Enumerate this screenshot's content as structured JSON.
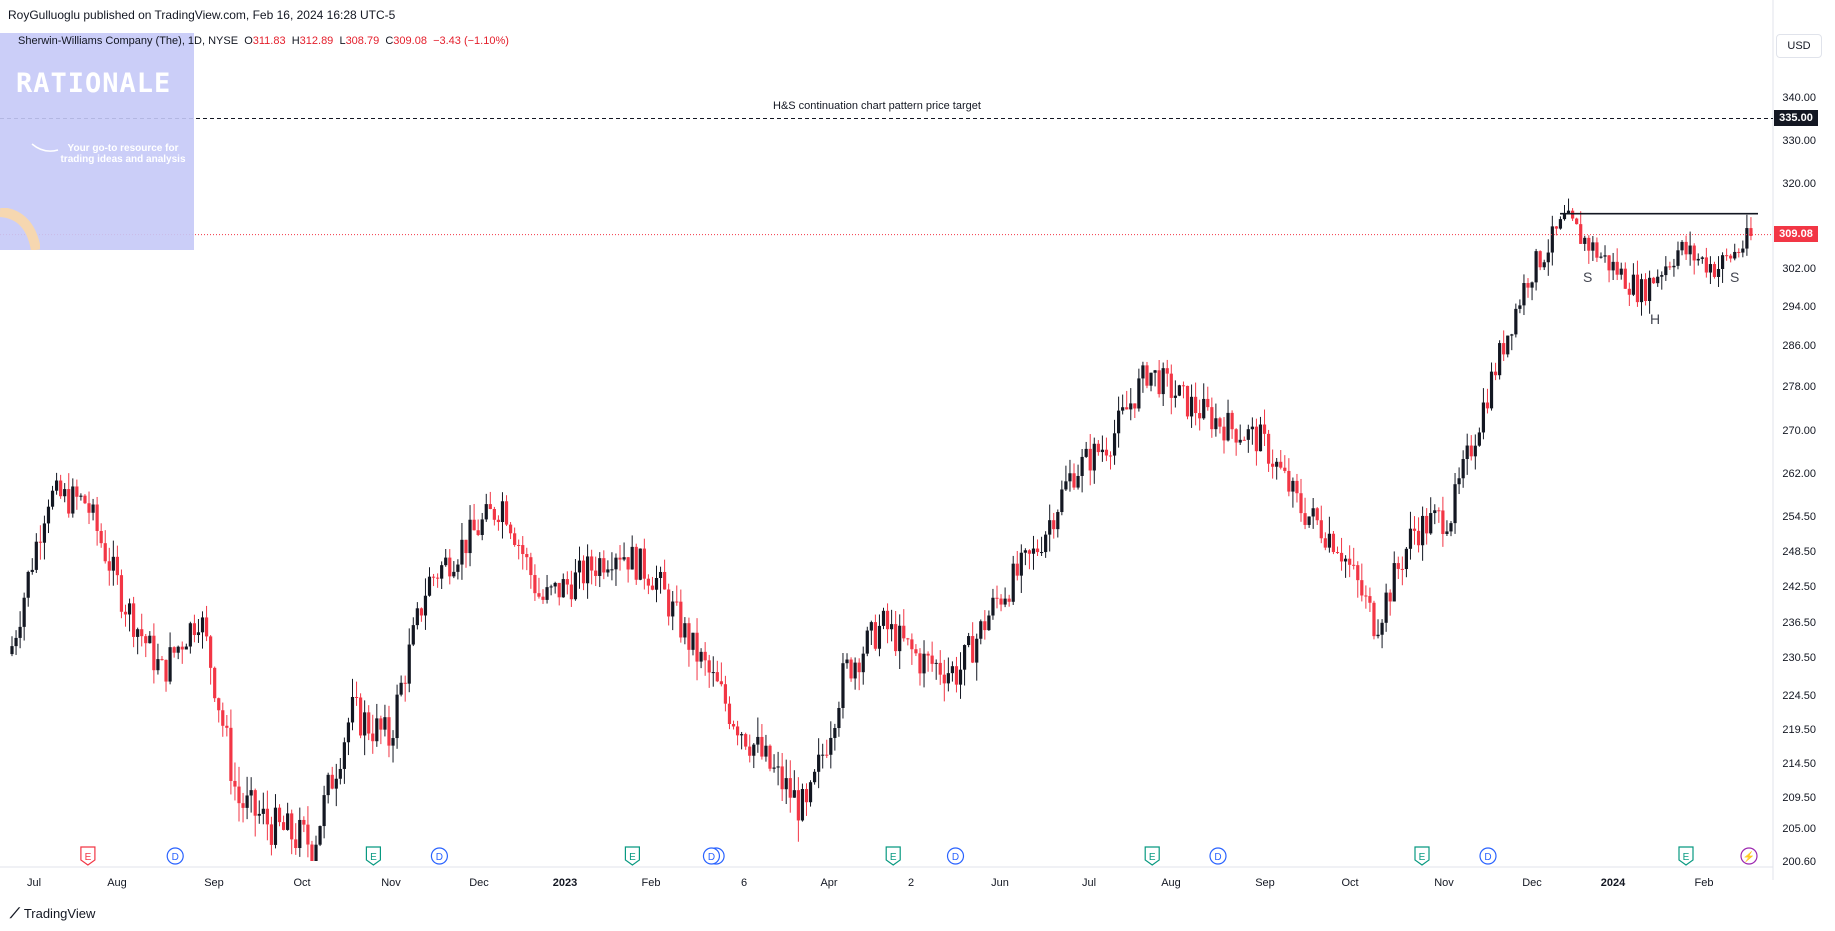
{
  "header": {
    "published": "RoyGulluoglu published on TradingView.com, Feb 16, 2024 16:28 UTC-5",
    "symbol": "Sherwin-Williams Company (The), 1D, NYSE",
    "ohlc": {
      "open_label": "O",
      "open": "311.83",
      "high_label": "H",
      "high": "312.89",
      "low_label": "L",
      "low": "308.79",
      "close_label": "C",
      "close": "309.08",
      "change": "−3.43 (−1.10%)"
    },
    "currency": "USD"
  },
  "logo": {
    "title": "RATIONALE",
    "tagline": "Your go-to resource for trading ideas and analysis"
  },
  "annotations": {
    "price_target_label": "H&S continuation chart pattern price target",
    "price_target_value": "335.00",
    "last_price_value": "309.08",
    "left_shoulder": "S",
    "head": "H",
    "right_shoulder": "S"
  },
  "footer": {
    "brand": "TradingView"
  },
  "colors": {
    "up": "#131722",
    "down": "#f23645",
    "last_price": "#f23645",
    "target": "#131722"
  },
  "chart_data": {
    "type": "candlestick",
    "y_ticks": [
      "340.00",
      "330.00",
      "320.00",
      "302.00",
      "294.00",
      "286.00",
      "278.00",
      "270.00",
      "262.00",
      "254.50",
      "248.50",
      "242.50",
      "236.50",
      "230.50",
      "224.50",
      "219.50",
      "214.50",
      "209.50",
      "205.00",
      "200.60"
    ],
    "x_ticks": [
      "Jul",
      "Aug",
      "Sep",
      "Oct",
      "Nov",
      "Dec",
      "2023",
      "Feb",
      "6",
      "Apr",
      "2",
      "Jun",
      "Jul",
      "Aug",
      "Sep",
      "Oct",
      "Nov",
      "Dec",
      "2024",
      "Feb"
    ],
    "x_ticks_bold": [
      "2023",
      "2024"
    ],
    "event_markers": [
      {
        "type": "E",
        "color": "#f23645",
        "tick": "Aug",
        "pos": -0.3
      },
      {
        "type": "D",
        "color": "#2962ff",
        "tick": "Aug",
        "pos": 0.6
      },
      {
        "type": "E",
        "color": "#089981",
        "tick": "Nov",
        "pos": -0.2
      },
      {
        "type": "D",
        "color": "#2962ff",
        "tick": "Nov",
        "pos": 0.55
      },
      {
        "type": "E",
        "color": "#089981",
        "tick": "Feb",
        "pos": -0.2
      },
      {
        "type": "D",
        "color": "#2962ff",
        "tick": "Feb",
        "pos": 0.7
      },
      {
        "type": "E",
        "color": "#089981",
        "tick": "2",
        "pos": -0.2
      },
      {
        "type": "D",
        "color": "#2962ff",
        "tick": "2",
        "pos": 0.5
      },
      {
        "type": "E",
        "color": "#089981",
        "tick": "Aug",
        "pos": -0.2
      },
      {
        "type": "D",
        "color": "#2962ff",
        "tick": "Aug",
        "pos": 0.5
      },
      {
        "type": "E",
        "color": "#089981",
        "tick": "Nov",
        "pos": -0.25
      },
      {
        "type": "D",
        "color": "#2962ff",
        "tick": "Nov",
        "pos": 0.5
      },
      {
        "type": "E",
        "color": "#089981",
        "tick": "Feb",
        "pos": -0.2
      },
      {
        "type": "S",
        "color": "#9c27b0",
        "tick": "Feb",
        "pos": 0.5
      },
      {
        "type": "D",
        "color": "#2962ff",
        "tick": "Feb",
        "pos": 0.65
      }
    ],
    "price_path": [
      [
        "Jul",
        231
      ],
      [
        "Jul",
        258
      ],
      [
        "Aug",
        257
      ],
      [
        "Aug",
        240
      ],
      [
        "Sep",
        228
      ],
      [
        "Sep",
        238
      ],
      [
        "Oct",
        209
      ],
      [
        "Oct",
        205
      ],
      [
        "Oct",
        203
      ],
      [
        "Nov",
        222
      ],
      [
        "Nov",
        218
      ],
      [
        "Dec",
        243
      ],
      [
        "Dec",
        250
      ],
      [
        "Dec",
        257
      ],
      [
        "2023",
        240
      ],
      [
        "2023",
        244
      ],
      [
        "2023",
        249
      ],
      [
        "Feb",
        244
      ],
      [
        "Feb",
        232
      ],
      [
        "6",
        222
      ],
      [
        "6",
        214
      ],
      [
        "Apr",
        207
      ],
      [
        "Apr",
        228
      ],
      [
        "2",
        236
      ],
      [
        "2",
        230
      ],
      [
        "2",
        228
      ],
      [
        "Jun",
        240
      ],
      [
        "Jun",
        248
      ],
      [
        "Jul",
        262
      ],
      [
        "Jul",
        268
      ],
      [
        "Aug",
        281
      ],
      [
        "Aug",
        275
      ],
      [
        "Sep",
        271
      ],
      [
        "Sep",
        268
      ],
      [
        "Oct",
        256
      ],
      [
        "Oct",
        250
      ],
      [
        "Nov",
        236
      ],
      [
        "Nov",
        252
      ],
      [
        "Nov",
        255
      ],
      [
        "Dec",
        278
      ],
      [
        "Dec",
        300
      ],
      [
        "Dec",
        312
      ],
      [
        "2024",
        304
      ],
      [
        "2024",
        297
      ],
      [
        "2024",
        306
      ],
      [
        "Feb",
        302
      ],
      [
        "Feb",
        309
      ]
    ],
    "last_price": 309.08,
    "target_price": 335.0,
    "neckline": 313.5,
    "y_axis_side": "right",
    "grid": false
  }
}
